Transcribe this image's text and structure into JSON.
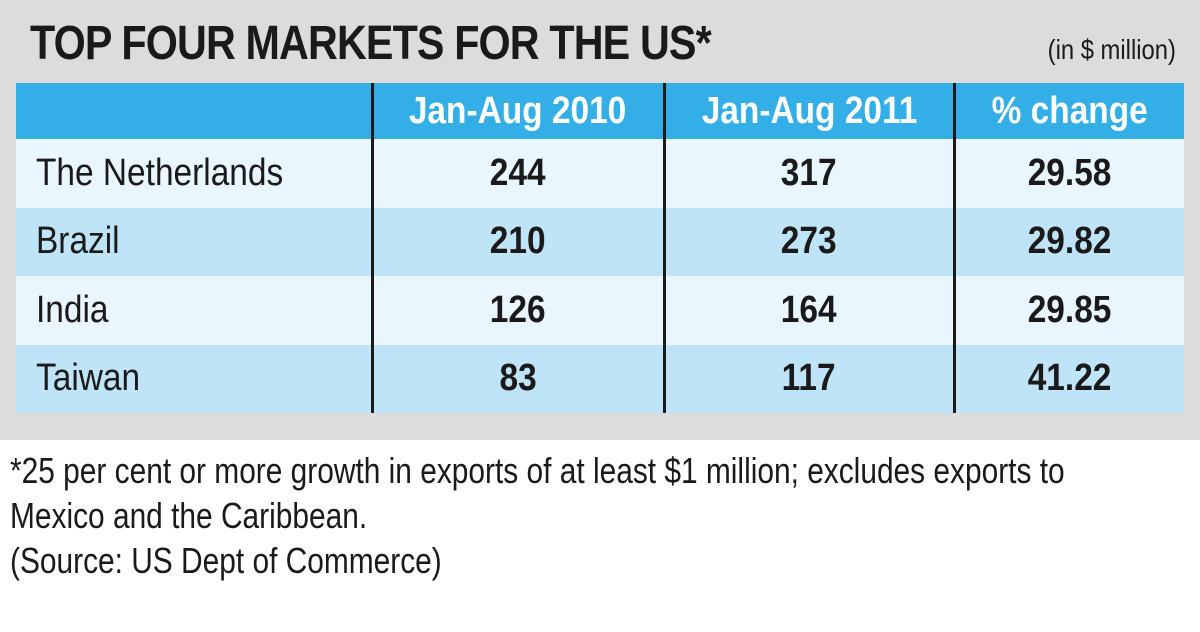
{
  "title": "TOP FOUR MARKETS FOR THE US*",
  "unit": "(in $ million)",
  "chart_data": {
    "type": "table",
    "columns": [
      "",
      "Jan-Aug 2010",
      "Jan-Aug 2011",
      "% change"
    ],
    "rows": [
      {
        "country": "The Netherlands",
        "v2010": "244",
        "v2011": "317",
        "change": "29.58"
      },
      {
        "country": "Brazil",
        "v2010": "210",
        "v2011": "273",
        "change": "29.82"
      },
      {
        "country": "India",
        "v2010": "126",
        "v2011": "164",
        "change": "29.85"
      },
      {
        "country": "Taiwan",
        "v2010": "83",
        "v2011": "117",
        "change": "41.22"
      }
    ]
  },
  "footnote": {
    "line1": "*25 per cent or more growth in exports of at least $1 million; excludes exports to",
    "line2": "Mexico and the Caribbean.",
    "source": "(Source: US Dept of Commerce)"
  },
  "colors": {
    "header": "#33aee6",
    "row_light": "#e9f6fd",
    "row_dark": "#bfe4f8",
    "panel": "#dcdcdc"
  }
}
